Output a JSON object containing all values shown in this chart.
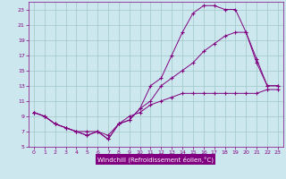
{
  "xlabel": "Windchill (Refroidissement éolien,°C)",
  "bg_color": "#cce8ee",
  "plot_bg": "#cce8ee",
  "grid_color": "#a0c8c8",
  "line_color": "#800080",
  "axis_label_bg": "#800080",
  "axis_label_fg": "#ffffff",
  "xlim": [
    -0.5,
    23.5
  ],
  "ylim": [
    5,
    24
  ],
  "xticks": [
    0,
    1,
    2,
    3,
    4,
    5,
    6,
    7,
    8,
    9,
    10,
    11,
    12,
    13,
    14,
    15,
    16,
    17,
    18,
    19,
    20,
    21,
    22,
    23
  ],
  "yticks": [
    5,
    7,
    9,
    11,
    13,
    15,
    17,
    19,
    21,
    23
  ],
  "series1_x": [
    0,
    1,
    2,
    3,
    4,
    5,
    6,
    7,
    8,
    9,
    10,
    11,
    12,
    13,
    14,
    15,
    16,
    17,
    18,
    19,
    20,
    21,
    22,
    23
  ],
  "series1_y": [
    9.5,
    9.0,
    8.0,
    7.5,
    7.0,
    7.0,
    7.0,
    6.5,
    8.0,
    9.0,
    9.5,
    10.5,
    11.0,
    11.5,
    12.0,
    12.0,
    12.0,
    12.0,
    12.0,
    12.0,
    12.0,
    12.0,
    12.5,
    12.5
  ],
  "series2_x": [
    0,
    1,
    2,
    3,
    4,
    5,
    6,
    7,
    8,
    9,
    10,
    11,
    12,
    13,
    14,
    15,
    16,
    17,
    18,
    19,
    20,
    21,
    22,
    23
  ],
  "series2_y": [
    9.5,
    9.0,
    8.0,
    7.5,
    7.0,
    6.5,
    7.0,
    6.0,
    8.0,
    8.5,
    10.0,
    13.0,
    14.0,
    17.0,
    20.0,
    22.5,
    23.5,
    23.5,
    23.0,
    23.0,
    20.0,
    16.0,
    13.0,
    13.0
  ],
  "series3_x": [
    0,
    1,
    2,
    3,
    4,
    5,
    6,
    7,
    8,
    9,
    10,
    11,
    12,
    13,
    14,
    15,
    16,
    17,
    18,
    19,
    20,
    21,
    22,
    23
  ],
  "series3_y": [
    9.5,
    9.0,
    8.0,
    7.5,
    7.0,
    6.5,
    7.0,
    6.0,
    8.0,
    8.5,
    10.0,
    11.0,
    13.0,
    14.0,
    15.0,
    16.0,
    17.5,
    18.5,
    19.5,
    20.0,
    20.0,
    16.5,
    13.0,
    13.0
  ]
}
